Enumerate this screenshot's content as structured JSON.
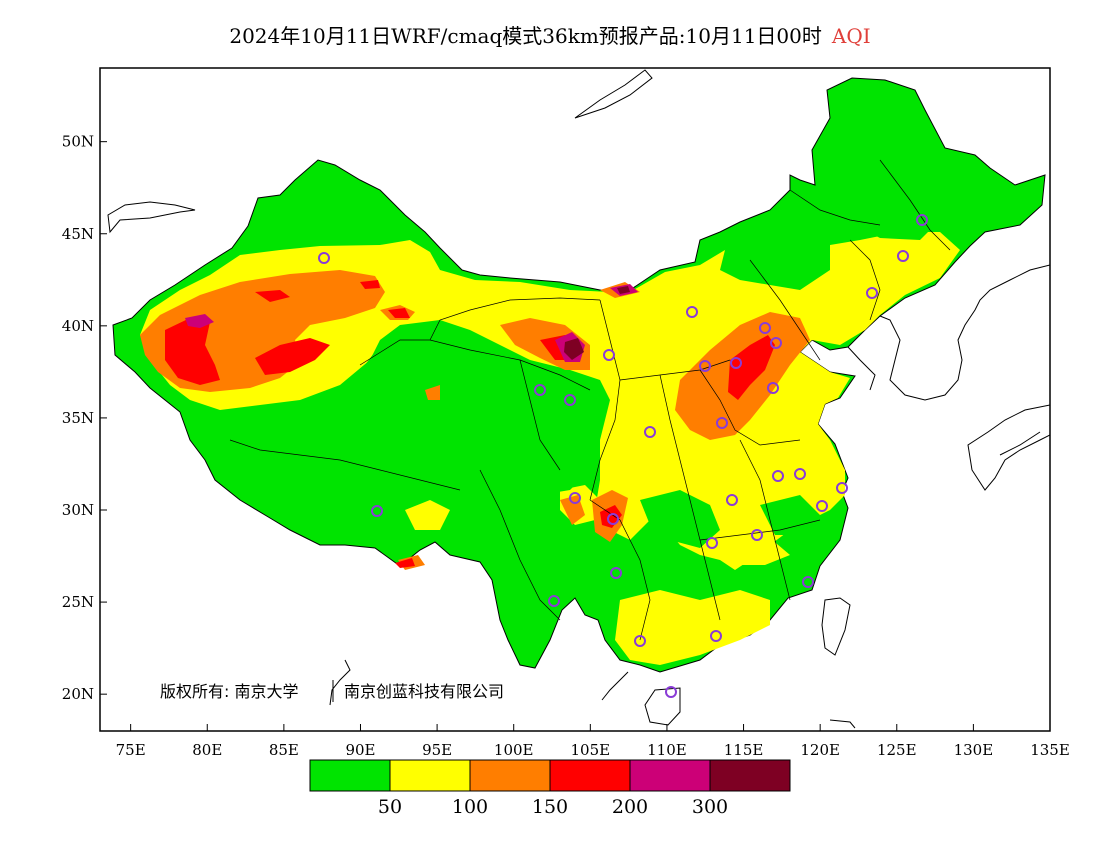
{
  "header": {
    "title": "2024年10月11日WRF/cmaq模式36km预报产品:10月11日00时",
    "variable": "AQI"
  },
  "map": {
    "lon_range": [
      73,
      135
    ],
    "lat_range": [
      18,
      54
    ],
    "x_ticks": [
      "75E",
      "80E",
      "85E",
      "90E",
      "95E",
      "100E",
      "105E",
      "110E",
      "115E",
      "120E",
      "125E",
      "130E",
      "135E"
    ],
    "y_ticks": [
      "20N",
      "25N",
      "30N",
      "35N",
      "40N",
      "45N",
      "50N"
    ],
    "copyright": "版权所有: 南京大学",
    "copyright_company": "南京创蓝科技有限公司"
  },
  "legend": {
    "colors": [
      "#00e400",
      "#ffff00",
      "#ff7e00",
      "#ff0000",
      "#cc0077",
      "#7e0023"
    ],
    "labels": [
      "50",
      "100",
      "150",
      "200",
      "300"
    ]
  }
}
